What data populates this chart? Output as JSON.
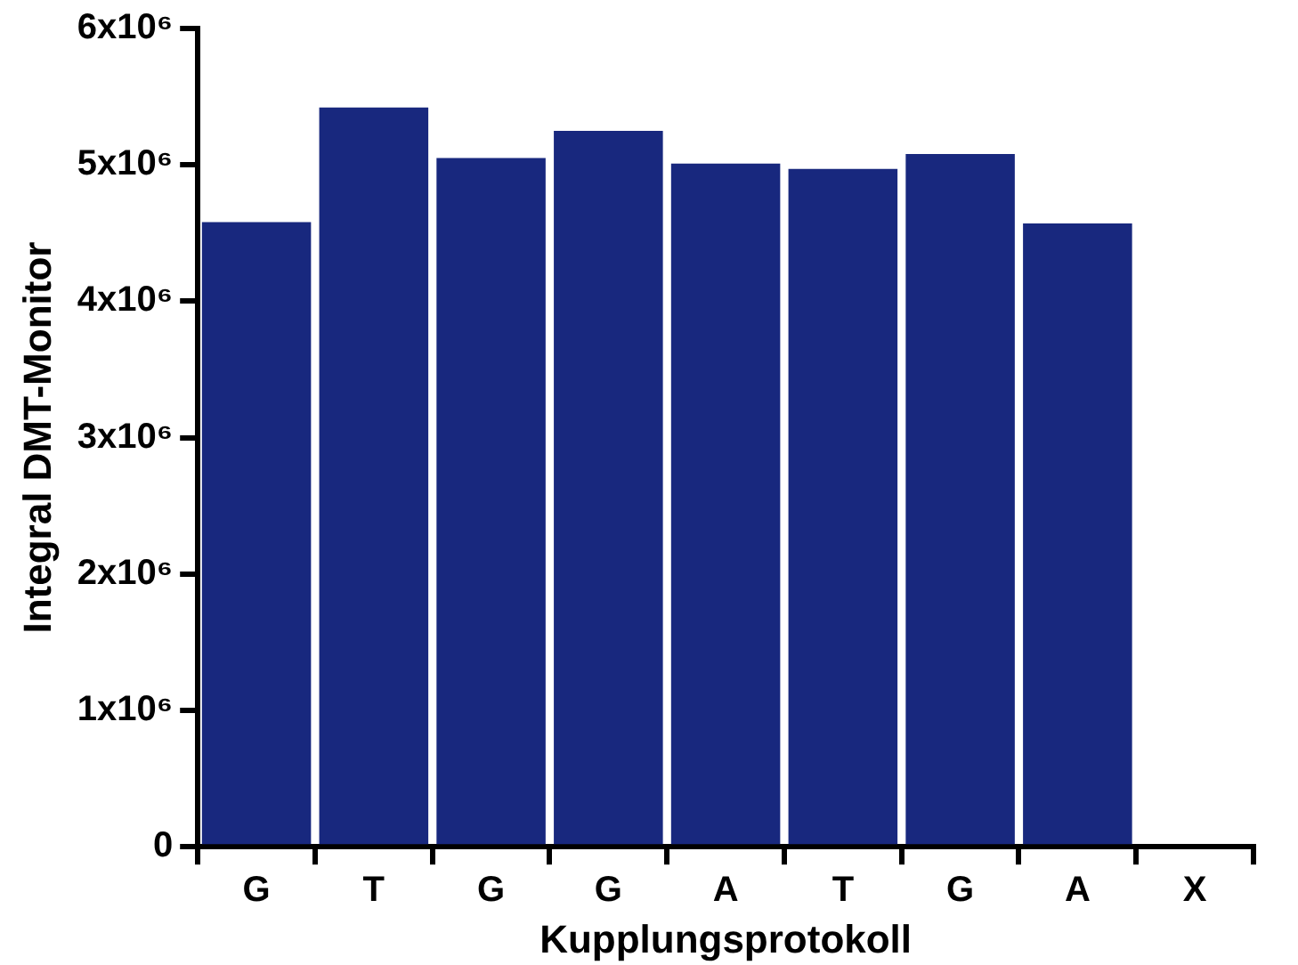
{
  "chart_data": {
    "type": "bar",
    "xlabel": "Kupplungsprotokoll",
    "ylabel": "Integral DMT-Monitor",
    "categories": [
      "G",
      "T",
      "G",
      "G",
      "A",
      "T",
      "G",
      "A",
      "X"
    ],
    "values": [
      4580000,
      5420000,
      5050000,
      5250000,
      5010000,
      4970000,
      5080000,
      4570000,
      null
    ],
    "color": "#18287e",
    "ylim": [
      0,
      6000000
    ],
    "yticks": [
      0,
      {
        "value": 1000000,
        "label": "1x10⁶"
      },
      {
        "value": 2000000,
        "label": "2x10⁶"
      },
      {
        "value": 3000000,
        "label": "3x10⁶"
      },
      {
        "value": 4000000,
        "label": "4x10⁶"
      },
      {
        "value": 5000000,
        "label": "5x10⁶"
      },
      {
        "value": 6000000,
        "label": "6x10⁶"
      }
    ],
    "grid": false,
    "legend": false
  }
}
